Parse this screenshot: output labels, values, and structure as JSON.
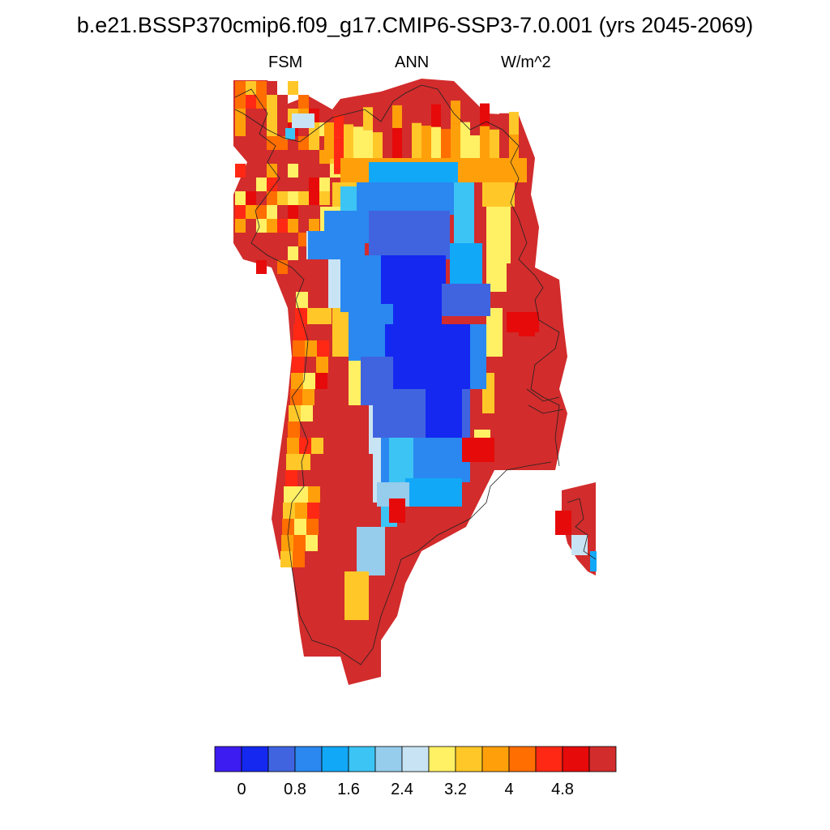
{
  "title": "b.e21.BSSP370cmip6.f09_g17.CMIP6-SSP3-7.0.001 (yrs 2045-2069)",
  "subtitle_left": "FSM",
  "subtitle_center": "ANN",
  "subtitle_right": "W/m^2",
  "colorbar": {
    "colors": [
      "#3c1cf0",
      "#1428f0",
      "#4064e0",
      "#2a88f0",
      "#12a8f8",
      "#3cc4f4",
      "#96ccec",
      "#c8e4f4",
      "#fff064",
      "#ffc828",
      "#ffa00a",
      "#ff6e00",
      "#ff2814",
      "#e60a0a",
      "#d22c2c"
    ],
    "tick_labels": [
      "0",
      "0.8",
      "1.6",
      "2.4",
      "3.2",
      "4",
      "4.8"
    ]
  },
  "chart_data": {
    "type": "heatmap",
    "title": "b.e21.BSSP370cmip6.f09_g17.CMIP6-SSP3-7.0.001 (yrs 2045-2069)",
    "variable": "FSM",
    "season": "ANN",
    "units": "W/m^2",
    "region": "Greenland",
    "levels": [
      0,
      0.4,
      0.8,
      1.2,
      1.6,
      2.0,
      2.4,
      2.8,
      3.2,
      3.6,
      4.0,
      4.4,
      4.8,
      5.2
    ],
    "pattern": "values near 0 over the central ice sheet, rising to above 5.2 around the coastal margins"
  }
}
